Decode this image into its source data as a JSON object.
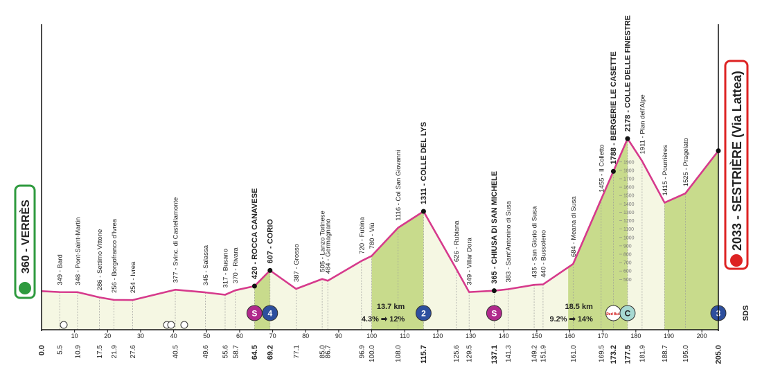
{
  "chart_data": {
    "type": "profile",
    "line_color": "#d63a8c",
    "fill_color": "#f5f7e3",
    "climb_color": "#c8db8c",
    "xlim": [
      0,
      205
    ],
    "ylim": [
      -100,
      3500
    ],
    "xticks": [
      10,
      20,
      30,
      40,
      50,
      60,
      70,
      80,
      90,
      100,
      110,
      120,
      130,
      140,
      150,
      160,
      170,
      180,
      190,
      200
    ],
    "yticks": [
      500,
      600,
      700,
      800,
      900,
      1000,
      1100,
      1200,
      1300,
      1400,
      1500,
      1600,
      1700,
      1800,
      1900
    ],
    "climb_segments": [
      {
        "start": 64.5,
        "end": 69.2
      },
      {
        "start": 100.0,
        "end": 115.7
      },
      {
        "start": 159.5,
        "end": 177.5
      },
      {
        "start": 188.7,
        "end": 205.0
      }
    ],
    "waypoints": [
      {
        "km": 0,
        "km_label": "0.0",
        "elevation": 360,
        "label": "360 - VERRÈS",
        "style": "start"
      },
      {
        "km": 5.5,
        "km_label": "5.5",
        "elevation": 349,
        "label": "349 - Bard",
        "style": "normal"
      },
      {
        "km": 10.9,
        "km_label": "10.9",
        "elevation": 348,
        "label": "348 - Pont-Saint-Martin",
        "style": "normal"
      },
      {
        "km": 17.5,
        "km_label": "17.5",
        "elevation": 286,
        "label": "286 - Settimo Vittone",
        "style": "normal"
      },
      {
        "km": 21.9,
        "km_label": "21.9",
        "elevation": 256,
        "label": "256 - Borgofranco d'Ivrea",
        "style": "normal"
      },
      {
        "km": 27.6,
        "km_label": "27.6",
        "elevation": 254,
        "label": "254 - Ivrea",
        "style": "normal"
      },
      {
        "km": 40.5,
        "km_label": "40.5",
        "elevation": 377,
        "label": "377 - Svinc. di Castellamonte",
        "style": "normal"
      },
      {
        "km": 49.6,
        "km_label": "49.6",
        "elevation": 345,
        "label": "345 - Salassa",
        "style": "normal"
      },
      {
        "km": 55.6,
        "km_label": "55.6",
        "elevation": 317,
        "label": "317 - Busano",
        "style": "normal"
      },
      {
        "km": 58.7,
        "km_label": "58.7",
        "elevation": 370,
        "label": "370 - Rivara",
        "style": "normal"
      },
      {
        "km": 64.5,
        "km_label": "64.5",
        "elevation": 420,
        "label": "420 - ROCCA CANAVESE",
        "style": "bold"
      },
      {
        "km": 69.2,
        "km_label": "69.2",
        "elevation": 607,
        "label": "607 - CORIO",
        "style": "bold"
      },
      {
        "km": 77.1,
        "km_label": "77.1",
        "elevation": 387,
        "label": "387 - Grosso",
        "style": "normal"
      },
      {
        "km": 85.0,
        "km_label": "85.0",
        "elevation": 505,
        "label": "505 - Lanzo Torinese",
        "style": "normal"
      },
      {
        "km": 86.7,
        "km_label": "86.7",
        "elevation": 484,
        "label": "484 - Germagnano",
        "style": "normal"
      },
      {
        "km": 96.9,
        "km_label": "96.9",
        "elevation": 720,
        "label": "720 - Fubina",
        "style": "normal"
      },
      {
        "km": 100.0,
        "km_label": "100.0",
        "elevation": 780,
        "label": "780 - Viù",
        "style": "normal"
      },
      {
        "km": 108.0,
        "km_label": "108.0",
        "elevation": 1116,
        "label": "1116 - Col San Giovanni",
        "style": "normal"
      },
      {
        "km": 115.7,
        "km_label": "115.7",
        "elevation": 1311,
        "label": "1311 - COLLE DEL LYS",
        "style": "bold"
      },
      {
        "km": 125.6,
        "km_label": "125.6",
        "elevation": 626,
        "label": "626 - Rubiana",
        "style": "normal"
      },
      {
        "km": 129.5,
        "km_label": "129.5",
        "elevation": 349,
        "label": "349 - Villar Dora",
        "style": "normal"
      },
      {
        "km": 137.1,
        "km_label": "137.1",
        "elevation": 365,
        "label": "365 - CHIUSA DI SAN MICHELE",
        "style": "bold"
      },
      {
        "km": 141.3,
        "km_label": "141.3",
        "elevation": 383,
        "label": "383 - Sant'Antonino di Susa",
        "style": "normal"
      },
      {
        "km": 149.2,
        "km_label": "149.2",
        "elevation": 435,
        "label": "435 - San Giorio di Susa",
        "style": "normal"
      },
      {
        "km": 151.9,
        "km_label": "151.9",
        "elevation": 440,
        "label": "440 - Bussoleno",
        "style": "normal"
      },
      {
        "km": 161.0,
        "km_label": "161.0",
        "elevation": 684,
        "label": "684 - Meana di Susa",
        "style": "normal"
      },
      {
        "km": 169.5,
        "km_label": "169.5",
        "elevation": 1455,
        "label": "1455 - Il Colletto",
        "style": "normal"
      },
      {
        "km": 173.2,
        "km_label": "173.2",
        "elevation": 1788,
        "label": "1788 - BERGERIE LE CASETTE",
        "style": "bold"
      },
      {
        "km": 177.5,
        "km_label": "177.5",
        "elevation": 2178,
        "label": "2178 - COLLE DELLE FINESTRE",
        "style": "bold"
      },
      {
        "km": 181.9,
        "km_label": "181.9",
        "elevation": 1911,
        "label": "1911 - Pian dell'Alpe",
        "style": "normal"
      },
      {
        "km": 188.7,
        "km_label": "188.7",
        "elevation": 1415,
        "label": "1415 - Pourrières",
        "style": "normal"
      },
      {
        "km": 195.0,
        "km_label": "195.0",
        "elevation": 1525,
        "label": "1525 - Pragelato",
        "style": "normal"
      },
      {
        "km": 205.0,
        "km_label": "205.0",
        "elevation": 2033,
        "label": "2033 - SESTRIÈRE (Via Lattea)",
        "style": "finish"
      }
    ],
    "markers": [
      {
        "km": 64.5,
        "label": "S",
        "color": "#b02a8c"
      },
      {
        "km": 69.2,
        "label": "4",
        "color": "#2d4f9e"
      },
      {
        "km": 115.7,
        "label": "2",
        "color": "#2d4f9e"
      },
      {
        "km": 137.1,
        "label": "S",
        "color": "#b02a8c"
      },
      {
        "km": 173.2,
        "label": "Red Bull",
        "color": "#ffffff"
      },
      {
        "km": 177.5,
        "label": "C",
        "color": "#a7d9d2"
      },
      {
        "km": 205.0,
        "label": "3",
        "color": "#2d4f9e"
      }
    ],
    "climb_notes": [
      {
        "km": 110.0,
        "length": "13.7 km",
        "gradient": "4.3% ➡ 12%"
      },
      {
        "km": 167.0,
        "length": "18.5 km",
        "gradient": "9.2% ➡ 14%"
      }
    ],
    "sponsor": "SDS"
  }
}
